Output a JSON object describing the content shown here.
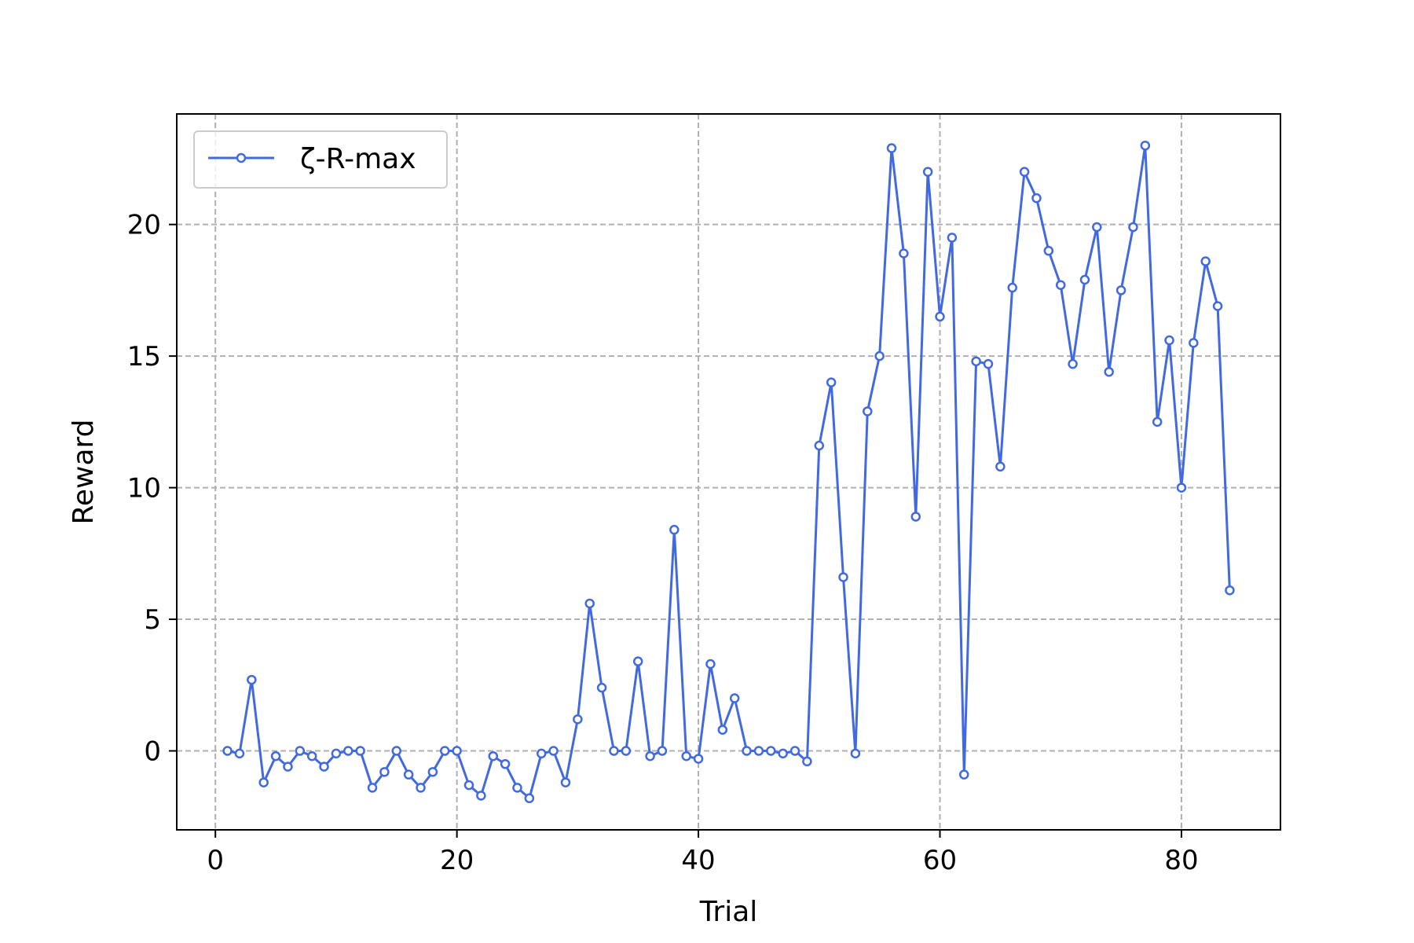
{
  "chart_data": {
    "type": "line",
    "title": "",
    "xlabel": "Trial",
    "ylabel": "Reward",
    "xlim": [
      -3.2,
      88.2
    ],
    "ylim": [
      -3.0,
      24.2
    ],
    "xticks": [
      0,
      20,
      40,
      60,
      80
    ],
    "yticks": [
      0,
      5,
      10,
      15,
      20
    ],
    "grid": true,
    "grid_style": "dashed",
    "legend": "top-left",
    "series": [
      {
        "name": "ζ-R-max",
        "color": "#4169e1",
        "marker": "circle",
        "x": [
          1,
          2,
          3,
          4,
          5,
          6,
          7,
          8,
          9,
          10,
          11,
          12,
          13,
          14,
          15,
          16,
          17,
          18,
          19,
          20,
          21,
          22,
          23,
          24,
          25,
          26,
          27,
          28,
          29,
          30,
          31,
          32,
          33,
          34,
          35,
          36,
          37,
          38,
          39,
          40,
          41,
          42,
          43,
          44,
          45,
          46,
          47,
          48,
          49,
          50,
          51,
          52,
          53,
          54,
          55,
          56,
          57,
          58,
          59,
          60,
          61,
          62,
          63,
          64,
          65,
          66,
          67,
          68,
          69,
          70,
          71,
          72,
          73,
          74,
          75,
          76,
          77,
          78,
          79,
          80,
          81,
          82,
          83,
          84
        ],
        "y": [
          0.0,
          -0.1,
          2.7,
          -1.2,
          -0.2,
          -0.6,
          0.0,
          -0.2,
          -0.6,
          -0.1,
          0.0,
          0.0,
          -1.4,
          -0.8,
          0.0,
          -0.9,
          -1.4,
          -0.8,
          0.0,
          0.0,
          -1.3,
          -1.7,
          -0.2,
          -0.5,
          -1.4,
          -1.8,
          -0.1,
          0.0,
          -1.2,
          1.2,
          5.6,
          2.4,
          0.0,
          0.0,
          3.4,
          -0.2,
          0.0,
          8.4,
          -0.2,
          -0.3,
          3.3,
          0.8,
          2.0,
          0.0,
          0.0,
          0.0,
          -0.1,
          0.0,
          -0.4,
          11.6,
          14.0,
          6.6,
          -0.1,
          12.9,
          15.0,
          22.9,
          18.9,
          8.9,
          22.0,
          16.5,
          19.5,
          -0.9,
          14.8,
          14.7,
          10.8,
          17.6,
          22.0,
          21.0,
          19.0,
          17.7,
          14.7,
          17.9,
          19.9,
          14.4,
          17.5,
          19.9,
          23.0,
          12.5,
          15.6,
          10.0,
          15.5,
          18.6,
          16.9,
          6.1
        ]
      }
    ]
  }
}
